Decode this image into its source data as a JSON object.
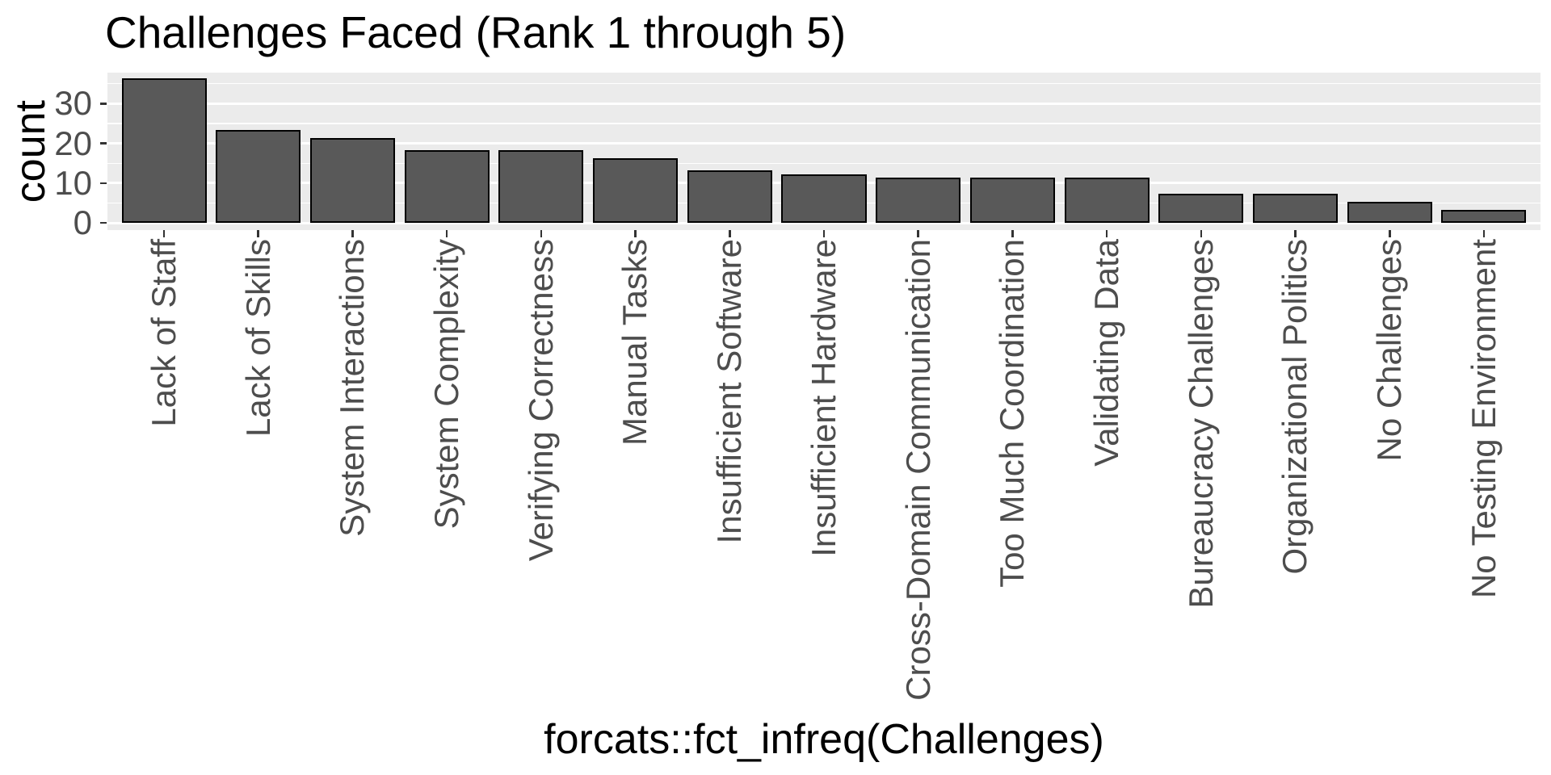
{
  "chart_data": {
    "type": "bar",
    "title": "Challenges Faced (Rank 1 through 5)",
    "xlabel": "forcats::fct_infreq(Challenges)",
    "ylabel": "count",
    "categories": [
      "Lack of Staff",
      "Lack of Skills",
      "System Interactions",
      "System Complexity",
      "Verifying Correctness",
      "Manual Tasks",
      "Insufficient Software",
      "Insufficient Hardware",
      "Cross-Domain Communication",
      "Too Much Coordination",
      "Validating Data",
      "Bureaucracy Challenges",
      "Organizational Politics",
      "No Challenges",
      "No Testing Environment"
    ],
    "values": [
      36,
      23,
      21,
      18,
      18,
      16,
      13,
      12,
      11,
      11,
      11,
      7,
      7,
      5,
      3
    ],
    "y_ticks": [
      0,
      10,
      20,
      30
    ],
    "y_minor_ticks": [
      5,
      15,
      25,
      35
    ],
    "ylim": [
      -1.8,
      37.8
    ],
    "grid": "white major and minor horizontal gridlines on gray panel",
    "legend": "none",
    "colors": {
      "bar_fill": "#595959",
      "bar_stroke": "#000000",
      "panel_background": "#EBEBEB",
      "gridline": "#FFFFFF",
      "axis_text": "#4D4D4D",
      "title_text": "#000000",
      "tick_mark": "#333333"
    }
  }
}
